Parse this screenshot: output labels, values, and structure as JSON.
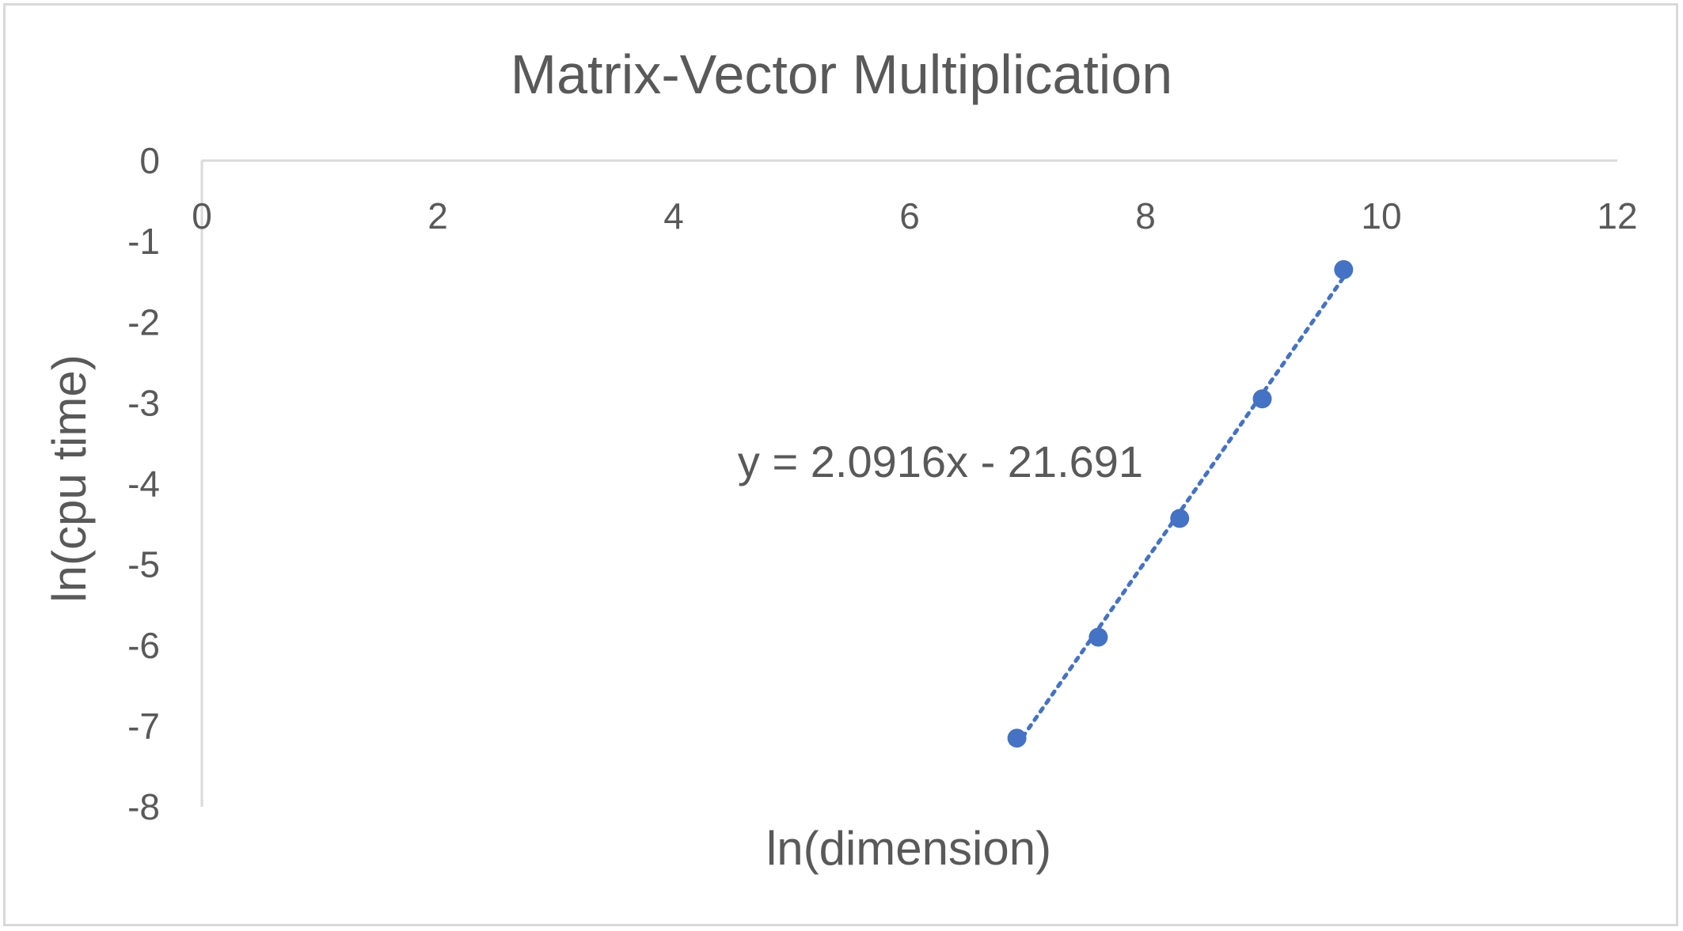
{
  "chart_data": {
    "type": "scatter",
    "title": "Matrix-Vector Multiplication",
    "xlabel": "ln(dimension)",
    "ylabel": "ln(cpu time)",
    "xlim": [
      0,
      12
    ],
    "ylim": [
      -8,
      0
    ],
    "x_ticks": [
      0,
      2,
      4,
      6,
      8,
      10,
      12
    ],
    "y_ticks": [
      0,
      -1,
      -2,
      -3,
      -4,
      -5,
      -6,
      -7,
      -8
    ],
    "grid": false,
    "legend": "none",
    "series": [
      {
        "points": [
          {
            "x": 6.91,
            "y": -7.15
          },
          {
            "x": 7.6,
            "y": -5.9
          },
          {
            "x": 8.29,
            "y": -4.43
          },
          {
            "x": 8.99,
            "y": -2.95
          },
          {
            "x": 9.68,
            "y": -1.35
          }
        ],
        "color": "#4472c4"
      }
    ],
    "trendline": {
      "type": "linear",
      "slope": 2.0916,
      "intercept": -21.691,
      "x_range": [
        6.91,
        9.68
      ],
      "style": "dotted",
      "color": "#4472c4",
      "equation_label": "y = 2.0916x - 21.691"
    }
  }
}
